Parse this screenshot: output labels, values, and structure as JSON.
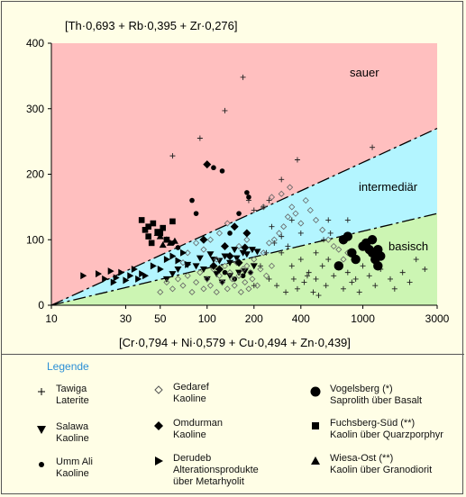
{
  "chart_data": {
    "type": "scatter",
    "title": "[Th·0,693 + Rb·0,395  + Zr·0,276]",
    "xlabel": "[Cr·0,794 + Ni·0,579 + Cu·0,494 + Zn·0,439]",
    "ylabel": "[Th·0,693 + Rb·0,395  + Zr·0,276]",
    "x_scale": "log",
    "xlim": [
      10,
      3000
    ],
    "ylim": [
      0,
      400
    ],
    "x_ticks": [
      "10",
      "30",
      "50",
      "100",
      "200",
      "400",
      "1000",
      "3000"
    ],
    "x_tick_values": [
      10,
      30,
      50,
      100,
      200,
      400,
      1000,
      3000
    ],
    "y_ticks": [
      "0",
      "100",
      "200",
      "300",
      "400"
    ],
    "y_tick_values": [
      0,
      100,
      200,
      300,
      400
    ],
    "grid": false,
    "regions": [
      {
        "name": "sauer",
        "color": "#ffbfbf"
      },
      {
        "name": "intermediär",
        "color": "#b3f5ff"
      },
      {
        "name": "basisch",
        "color": "#ccf5b3"
      }
    ],
    "boundaries": [
      {
        "from": [
          10,
          0
        ],
        "to": [
          3000,
          270
        ]
      },
      {
        "from": [
          10,
          0
        ],
        "to": [
          3000,
          140
        ]
      }
    ],
    "series": [
      {
        "name": "Tawiga Laterite",
        "marker": "plus",
        "points": [
          [
            170,
            348
          ],
          [
            130,
            297
          ],
          [
            90,
            255
          ],
          [
            60,
            228
          ],
          [
            300,
            192
          ],
          [
            380,
            222
          ],
          [
            1150,
            241
          ],
          [
            185,
            160
          ],
          [
            200,
            145
          ],
          [
            250,
            160
          ],
          [
            230,
            150
          ],
          [
            260,
            120
          ],
          [
            300,
            105
          ],
          [
            350,
            130
          ],
          [
            400,
            110
          ],
          [
            600,
            130
          ],
          [
            800,
            130
          ],
          [
            300,
            80
          ],
          [
            350,
            60
          ],
          [
            400,
            70
          ],
          [
            450,
            50
          ],
          [
            500,
            40
          ],
          [
            550,
            60
          ],
          [
            600,
            70
          ],
          [
            700,
            60
          ],
          [
            800,
            50
          ],
          [
            900,
            40
          ],
          [
            1000,
            60
          ],
          [
            1200,
            30
          ],
          [
            1500,
            40
          ],
          [
            1800,
            50
          ],
          [
            2000,
            35
          ],
          [
            2500,
            55
          ],
          [
            2200,
            70
          ],
          [
            250,
            40
          ],
          [
            280,
            30
          ],
          [
            320,
            20
          ],
          [
            380,
            25
          ],
          [
            420,
            35
          ],
          [
            480,
            20
          ],
          [
            520,
            15
          ],
          [
            580,
            30
          ],
          [
            650,
            45
          ],
          [
            750,
            25
          ],
          [
            850,
            35
          ],
          [
            950,
            20
          ],
          [
            1100,
            45
          ],
          [
            1300,
            55
          ],
          [
            1600,
            25
          ],
          [
            200,
            30
          ],
          [
            220,
            60
          ],
          [
            240,
            80
          ],
          [
            270,
            95
          ],
          [
            330,
            90
          ],
          [
            360,
            40
          ],
          [
            440,
            45
          ],
          [
            500,
            80
          ],
          [
            560,
            100
          ],
          [
            620,
            110
          ]
        ]
      },
      {
        "name": "Salawa Kaoline",
        "marker": "tri-down",
        "points": [
          [
            55,
            40
          ],
          [
            60,
            48
          ],
          [
            65,
            55
          ],
          [
            75,
            62
          ],
          [
            85,
            60
          ],
          [
            95,
            55
          ],
          [
            110,
            70
          ],
          [
            120,
            68
          ],
          [
            130,
            75
          ],
          [
            140,
            65
          ],
          [
            155,
            72
          ],
          [
            170,
            80
          ],
          [
            180,
            78
          ],
          [
            195,
            85
          ],
          [
            210,
            82
          ],
          [
            100,
            40
          ],
          [
            115,
            48
          ],
          [
            125,
            35
          ],
          [
            140,
            45
          ],
          [
            160,
            50
          ],
          [
            175,
            52
          ],
          [
            200,
            60
          ],
          [
            90,
            72
          ],
          [
            105,
            78
          ],
          [
            150,
            85
          ]
        ]
      },
      {
        "name": "Umm Ali Kaoline",
        "marker": "dot",
        "points": [
          [
            110,
            210
          ],
          [
            125,
            205
          ],
          [
            80,
            160
          ],
          [
            85,
            140
          ],
          [
            160,
            140
          ],
          [
            180,
            172
          ],
          [
            185,
            165
          ],
          [
            60,
            95
          ],
          [
            65,
            88
          ],
          [
            130,
            50
          ],
          [
            150,
            40
          ],
          [
            170,
            45
          ],
          [
            190,
            50
          ],
          [
            140,
            110
          ]
        ]
      },
      {
        "name": "Gedaref Kaoline",
        "marker": "diamond-open",
        "points": [
          [
            50,
            20
          ],
          [
            55,
            35
          ],
          [
            60,
            25
          ],
          [
            65,
            40
          ],
          [
            70,
            30
          ],
          [
            75,
            45
          ],
          [
            80,
            20
          ],
          [
            85,
            35
          ],
          [
            90,
            50
          ],
          [
            95,
            25
          ],
          [
            100,
            40
          ],
          [
            105,
            30
          ],
          [
            110,
            55
          ],
          [
            115,
            20
          ],
          [
            120,
            45
          ],
          [
            125,
            35
          ],
          [
            130,
            60
          ],
          [
            135,
            25
          ],
          [
            140,
            50
          ],
          [
            145,
            40
          ],
          [
            150,
            30
          ],
          [
            155,
            65
          ],
          [
            160,
            45
          ],
          [
            165,
            20
          ],
          [
            170,
            55
          ],
          [
            175,
            35
          ],
          [
            180,
            60
          ],
          [
            185,
            25
          ],
          [
            190,
            50
          ],
          [
            195,
            40
          ],
          [
            200,
            70
          ],
          [
            210,
            30
          ],
          [
            220,
            55
          ],
          [
            230,
            80
          ],
          [
            240,
            45
          ],
          [
            250,
            95
          ],
          [
            260,
            60
          ],
          [
            270,
            100
          ],
          [
            290,
            110
          ],
          [
            310,
            120
          ],
          [
            330,
            135
          ],
          [
            350,
            150
          ],
          [
            370,
            140
          ],
          [
            400,
            125
          ],
          [
            430,
            160
          ],
          [
            460,
            145
          ],
          [
            500,
            130
          ],
          [
            550,
            115
          ],
          [
            600,
            100
          ],
          [
            650,
            90
          ],
          [
            700,
            85
          ],
          [
            750,
            70
          ],
          [
            800,
            80
          ],
          [
            230,
            150
          ],
          [
            260,
            165
          ],
          [
            300,
            170
          ],
          [
            340,
            180
          ],
          [
            120,
            110
          ],
          [
            135,
            125
          ],
          [
            160,
            90
          ],
          [
            180,
            100
          ],
          [
            70,
            65
          ],
          [
            75,
            80
          ],
          [
            85,
            95
          ],
          [
            95,
            85
          ],
          [
            105,
            100
          ],
          [
            115,
            70
          ]
        ]
      },
      {
        "name": "Omdurman Kaoline",
        "marker": "diamond-filled",
        "points": [
          [
            100,
            215
          ],
          [
            95,
            100
          ],
          [
            130,
            90
          ],
          [
            150,
            120
          ],
          [
            180,
            110
          ],
          [
            110,
            60
          ],
          [
            120,
            55
          ],
          [
            140,
            75
          ],
          [
            160,
            65
          ],
          [
            175,
            88
          ]
        ]
      },
      {
        "name": "Derudeb Alterationsprodukte über Metarhyolit",
        "marker": "tri-right",
        "points": [
          [
            16,
            45
          ],
          [
            20,
            48
          ],
          [
            22,
            40
          ],
          [
            24,
            52
          ],
          [
            25,
            35
          ],
          [
            26,
            42
          ],
          [
            28,
            50
          ],
          [
            30,
            38
          ],
          [
            32,
            45
          ],
          [
            34,
            55
          ],
          [
            36,
            40
          ],
          [
            38,
            48
          ],
          [
            40,
            45
          ],
          [
            45,
            60
          ],
          [
            50,
            55
          ],
          [
            55,
            70
          ],
          [
            60,
            75
          ],
          [
            65,
            68
          ],
          [
            70,
            80
          ],
          [
            75,
            62
          ]
        ]
      },
      {
        "name": "Vogelsberg (*) Saprolith über Basalt",
        "marker": "big-dot",
        "points": [
          [
            750,
            100
          ],
          [
            800,
            105
          ],
          [
            1050,
            95
          ],
          [
            1100,
            85
          ],
          [
            1150,
            80
          ],
          [
            1200,
            70
          ],
          [
            1250,
            60
          ],
          [
            1300,
            75
          ],
          [
            850,
            80
          ],
          [
            900,
            70
          ],
          [
            700,
            60
          ],
          [
            1000,
            90
          ],
          [
            1150,
            100
          ],
          [
            1250,
            85
          ]
        ]
      },
      {
        "name": "Fuchsberg-Süd (**) Kaolin über Quarzporphyr",
        "marker": "square",
        "points": [
          [
            38,
            130
          ],
          [
            42,
            120
          ],
          [
            45,
            125
          ],
          [
            40,
            115
          ],
          [
            50,
            110
          ],
          [
            44,
            95
          ],
          [
            60,
            128
          ],
          [
            55,
            100
          ],
          [
            48,
            112
          ],
          [
            52,
            118
          ],
          [
            42,
            105
          ]
        ]
      },
      {
        "name": "Wiesa-Ost (**) Kaolin über Granodiorit",
        "marker": "tri-up",
        "points": [
          [
            50,
            105
          ],
          [
            55,
            100
          ],
          [
            58,
            95
          ],
          [
            62,
            98
          ],
          [
            48,
            110
          ],
          [
            52,
            92
          ]
        ]
      }
    ]
  },
  "legend": {
    "title": "Legende",
    "items": [
      {
        "line1": "Tawiga",
        "line2": "Laterite",
        "line3": ""
      },
      {
        "line1": "Salawa",
        "line2": "Kaoline",
        "line3": ""
      },
      {
        "line1": "Umm Ali",
        "line2": "Kaoline",
        "line3": ""
      },
      {
        "line1": "Gedaref",
        "line2": "Kaoline",
        "line3": ""
      },
      {
        "line1": "Omdurman",
        "line2": "Kaoline",
        "line3": ""
      },
      {
        "line1": "Derudeb",
        "line2": "Alterationsprodukte",
        "line3": "über Metarhyolit"
      },
      {
        "line1": "Vogelsberg (*)",
        "line2": "Saprolith über Basalt",
        "line3": ""
      },
      {
        "line1": "Fuchsberg-Süd (**)",
        "line2": "Kaolin über Quarzporphyr",
        "line3": ""
      },
      {
        "line1": "Wiesa-Ost (**)",
        "line2": "Kaolin über Granodiorit",
        "line3": ""
      }
    ]
  }
}
